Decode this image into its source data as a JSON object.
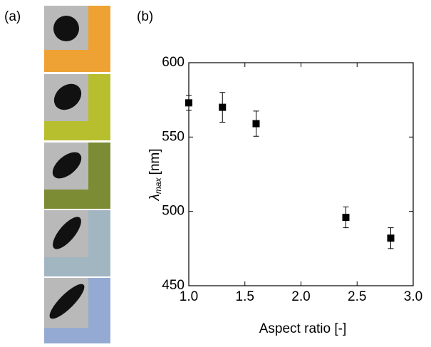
{
  "panels": {
    "a": "(a)",
    "b": "(b)"
  },
  "chart_data": {
    "type": "scatter",
    "xlabel": "Aspect ratio [-]",
    "ylabel": {
      "symbol": "λ",
      "subscript": "max",
      "unit": "[nm]"
    },
    "x": [
      1.0,
      1.3,
      1.6,
      2.4,
      2.8
    ],
    "series": [
      {
        "color": "#000000",
        "values": [
          573,
          570,
          559,
          496,
          482
        ],
        "errors": [
          5,
          10,
          8.5,
          7,
          7
        ]
      }
    ],
    "xlim": [
      1.0,
      3.0
    ],
    "xticks": [
      {
        "value": 1.0,
        "label": "1.0"
      },
      {
        "value": 1.5,
        "label": "1.5"
      },
      {
        "value": 2.0,
        "label": "2.0"
      },
      {
        "value": 2.5,
        "label": "2.5"
      },
      {
        "value": 3.0,
        "label": "3.0"
      }
    ],
    "ylim": [
      450,
      600
    ],
    "yticks": [
      450,
      500,
      550,
      600
    ],
    "grid": false
  }
}
